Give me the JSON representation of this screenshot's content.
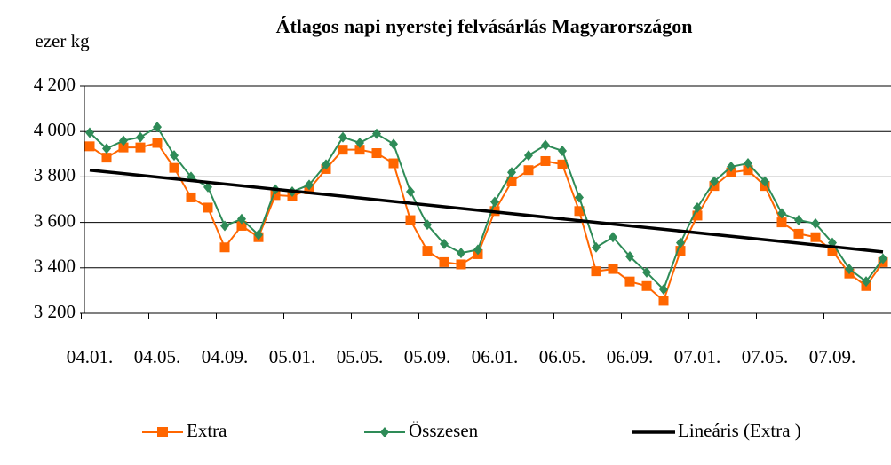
{
  "chart_data": {
    "type": "line",
    "title": "Átlagos napi nyerstej felvásárlás Magyarországon",
    "y_label": "ezer kg",
    "categories": [
      "04.01.",
      null,
      null,
      null,
      "04.05.",
      null,
      null,
      null,
      "04.09.",
      null,
      null,
      null,
      "05.01.",
      null,
      null,
      null,
      "05.05.",
      null,
      null,
      null,
      "05.09.",
      null,
      null,
      null,
      "06.01.",
      null,
      null,
      null,
      "06.05.",
      null,
      null,
      null,
      "06.09.",
      null,
      null,
      null,
      "07.01.",
      null,
      null,
      null,
      "07.05.",
      null,
      null,
      null,
      "07.09.",
      null,
      null,
      null
    ],
    "series": [
      {
        "name": "Extra",
        "color": "#ff6600",
        "marker": "square",
        "values": [
          3935,
          3885,
          3930,
          3930,
          3950,
          3840,
          3710,
          3665,
          3490,
          3585,
          3535,
          3720,
          3715,
          3745,
          3835,
          3920,
          3920,
          3905,
          3860,
          3610,
          3475,
          3425,
          3415,
          3460,
          3650,
          3780,
          3830,
          3870,
          3855,
          3650,
          3385,
          3395,
          3340,
          3320,
          3255,
          3475,
          3630,
          3760,
          3820,
          3830,
          3760,
          3600,
          3550,
          3535,
          3475,
          3375,
          3320,
          3425
        ]
      },
      {
        "name": "Összesen",
        "color": "#2e8b57",
        "marker": "diamond",
        "values": [
          3995,
          3925,
          3960,
          3975,
          4020,
          3895,
          3800,
          3755,
          3585,
          3615,
          3545,
          3745,
          3735,
          3765,
          3855,
          3975,
          3950,
          3990,
          3945,
          3735,
          3590,
          3505,
          3465,
          3480,
          3690,
          3820,
          3895,
          3940,
          3915,
          3710,
          3490,
          3535,
          3450,
          3380,
          3305,
          3510,
          3665,
          3780,
          3845,
          3860,
          3780,
          3640,
          3610,
          3595,
          3510,
          3395,
          3340,
          3440
        ]
      }
    ],
    "trend": {
      "name": "Lineáris (Extra )",
      "color": "#000000",
      "start": 3830,
      "end": 3470
    },
    "ylim": [
      3200,
      4200
    ],
    "yticks": [
      {
        "value": 3200,
        "label": "3 200"
      },
      {
        "value": 3400,
        "label": "3 400"
      },
      {
        "value": 3600,
        "label": "3 600"
      },
      {
        "value": 3800,
        "label": "3 800"
      },
      {
        "value": 4000,
        "label": "4 000"
      },
      {
        "value": 4200,
        "label": "4 200"
      }
    ],
    "grid": true,
    "legend": "bottom"
  }
}
